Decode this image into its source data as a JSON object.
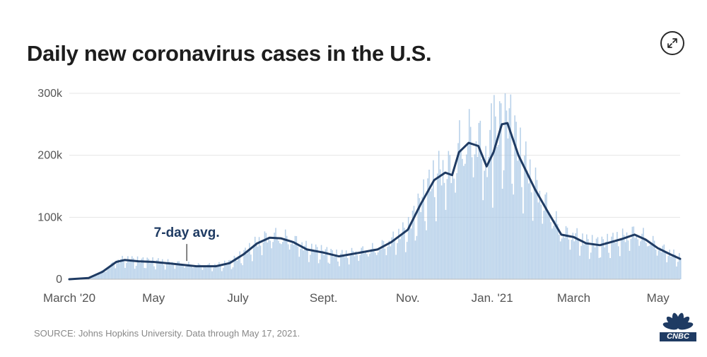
{
  "title": "Daily new coronavirus cases in the U.S.",
  "source": "SOURCE: Johns Hopkins University. Data through May 17, 2021.",
  "brand": "CNBC",
  "icons": {
    "expand": "expand-arrows-icon",
    "logo": "peacock-icon"
  },
  "colors": {
    "line": "#1f3b63",
    "bars": "#a9c8e5",
    "grid": "#e4e4e4",
    "axis": "#555555"
  },
  "chart_data": {
    "type": "bar",
    "x_start": "2020-03-01",
    "x_end": "2021-05-17",
    "ylim": [
      0,
      300000
    ],
    "yticks": [
      0,
      100000,
      200000,
      300000
    ],
    "ytick_labels": [
      "0",
      "100k",
      "200k",
      "300k"
    ],
    "xtick_labels": [
      "March '20",
      "May",
      "July",
      "Sept.",
      "Nov.",
      "Jan. '21",
      "March",
      "May"
    ],
    "xtick_dates": [
      "2020-03-01",
      "2020-05-01",
      "2020-07-01",
      "2020-09-01",
      "2020-11-01",
      "2021-01-01",
      "2021-03-01",
      "2021-05-01"
    ],
    "annotation": {
      "text": "7-day avg.",
      "date": "2020-05-25"
    },
    "series": [
      {
        "name": "7-day avg.",
        "type": "line",
        "points": [
          [
            "2020-03-01",
            0
          ],
          [
            "2020-03-15",
            2000
          ],
          [
            "2020-03-25",
            12000
          ],
          [
            "2020-04-04",
            28000
          ],
          [
            "2020-04-10",
            31000
          ],
          [
            "2020-04-20",
            29000
          ],
          [
            "2020-05-01",
            28000
          ],
          [
            "2020-05-15",
            25000
          ],
          [
            "2020-06-01",
            21000
          ],
          [
            "2020-06-15",
            21000
          ],
          [
            "2020-06-25",
            26000
          ],
          [
            "2020-07-05",
            40000
          ],
          [
            "2020-07-15",
            58000
          ],
          [
            "2020-07-24",
            67000
          ],
          [
            "2020-08-01",
            66000
          ],
          [
            "2020-08-10",
            60000
          ],
          [
            "2020-08-20",
            48000
          ],
          [
            "2020-09-01",
            43000
          ],
          [
            "2020-09-12",
            37000
          ],
          [
            "2020-09-20",
            40000
          ],
          [
            "2020-09-30",
            44000
          ],
          [
            "2020-10-10",
            48000
          ],
          [
            "2020-10-20",
            60000
          ],
          [
            "2020-11-01",
            80000
          ],
          [
            "2020-11-10",
            120000
          ],
          [
            "2020-11-20",
            160000
          ],
          [
            "2020-11-28",
            172000
          ],
          [
            "2020-12-03",
            168000
          ],
          [
            "2020-12-08",
            205000
          ],
          [
            "2020-12-15",
            220000
          ],
          [
            "2020-12-22",
            215000
          ],
          [
            "2020-12-28",
            182000
          ],
          [
            "2021-01-02",
            205000
          ],
          [
            "2021-01-08",
            250000
          ],
          [
            "2021-01-12",
            252000
          ],
          [
            "2021-01-20",
            200000
          ],
          [
            "2021-02-01",
            145000
          ],
          [
            "2021-02-10",
            110000
          ],
          [
            "2021-02-20",
            72000
          ],
          [
            "2021-03-01",
            68000
          ],
          [
            "2021-03-10",
            58000
          ],
          [
            "2021-03-20",
            55000
          ],
          [
            "2021-03-28",
            60000
          ],
          [
            "2021-04-05",
            65000
          ],
          [
            "2021-04-14",
            72000
          ],
          [
            "2021-04-22",
            64000
          ],
          [
            "2021-05-01",
            50000
          ],
          [
            "2021-05-10",
            40000
          ],
          [
            "2021-05-17",
            33000
          ]
        ]
      }
    ]
  }
}
